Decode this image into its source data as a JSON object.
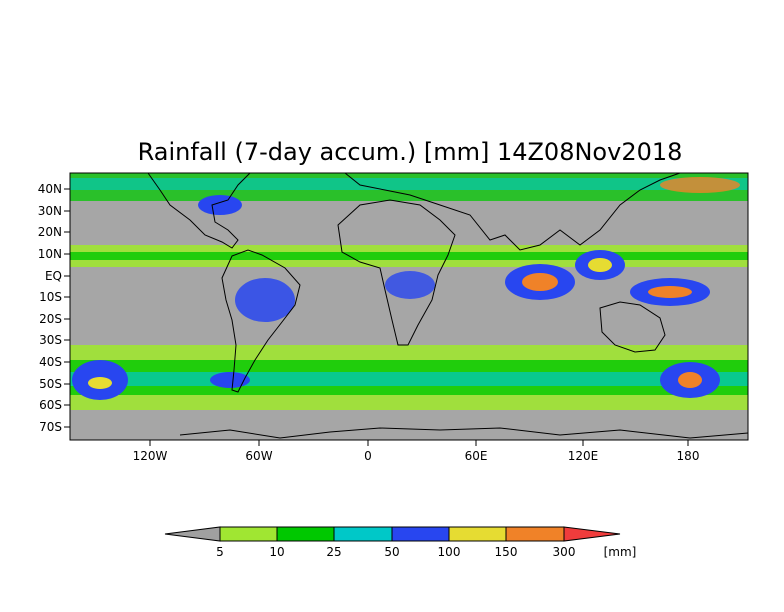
{
  "title": "Rainfall (7-day accum.) [mm] 14Z08Nov2018",
  "map": {
    "lon_labels": [
      "120W",
      "60W",
      "0",
      "60E",
      "120E",
      "180"
    ],
    "lat_labels": [
      "40N",
      "30N",
      "20N",
      "10N",
      "EQ",
      "10S",
      "20S",
      "30S",
      "40S",
      "50S",
      "60S",
      "70S"
    ],
    "ocean_color": "#a6a6a6",
    "border_color": "#000000"
  },
  "colorbar": {
    "thresholds": [
      "5",
      "10",
      "25",
      "50",
      "100",
      "150",
      "300"
    ],
    "unit": "[mm]",
    "colors": [
      "#a0a0a0",
      "#a0e632",
      "#00c800",
      "#00c8c8",
      "#2846f0",
      "#e6dc32",
      "#f08228",
      "#f03c3c"
    ]
  }
}
